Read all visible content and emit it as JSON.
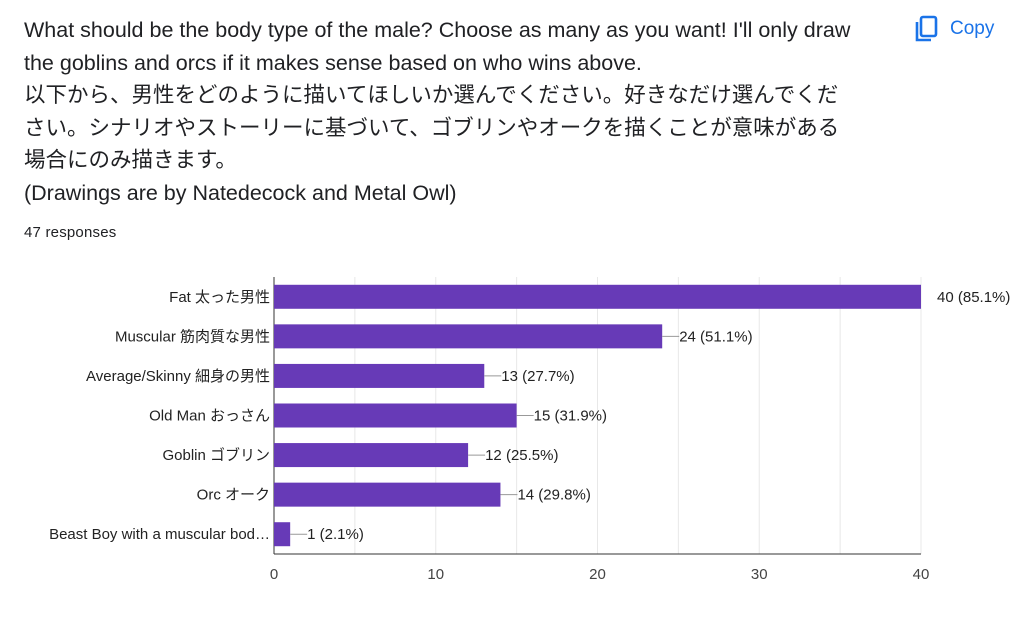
{
  "question": {
    "lines": [
      "What should be the body type of the male? Choose as many as you want! I'll only draw",
      "the goblins and orcs if it makes sense based on who wins above.",
      "以下から、男性をどのように描いてほしいか選んでください。好きなだけ選んでくだ",
      "さい。シナリオやストーリーに基づいて、ゴブリンやオークを描くことが意味がある",
      "場合にのみ描きます。",
      "(Drawings are by Natedecock and Metal Owl)"
    ]
  },
  "responses_text": "47 responses",
  "copy_button": {
    "label": "Copy",
    "icon": "copy-icon"
  },
  "colors": {
    "bar": "#673ab7",
    "accent": "#1a73e8",
    "text": "#202124",
    "grid": "#e8e8e8"
  },
  "chart_data": {
    "type": "bar",
    "orientation": "horizontal",
    "categories": [
      "Fat 太った男性",
      "Muscular 筋肉質な男性",
      "Average/Skinny 細身の男性",
      "Old Man おっさん",
      "Goblin ゴブリン",
      "Orc オーク",
      "Beast Boy with a muscular bod…"
    ],
    "values": [
      40,
      24,
      13,
      15,
      12,
      14,
      1
    ],
    "data_labels": [
      "40 (85.1%)",
      "24 (51.1%)",
      "13 (27.7%)",
      "15 (31.9%)",
      "12 (25.5%)",
      "14 (29.8%)",
      "1 (2.1%)"
    ],
    "xlim": [
      0,
      40
    ],
    "xticks": [
      0,
      10,
      20,
      30,
      40
    ],
    "grid": true,
    "legend": "none",
    "title": "",
    "xlabel": "",
    "ylabel": ""
  }
}
